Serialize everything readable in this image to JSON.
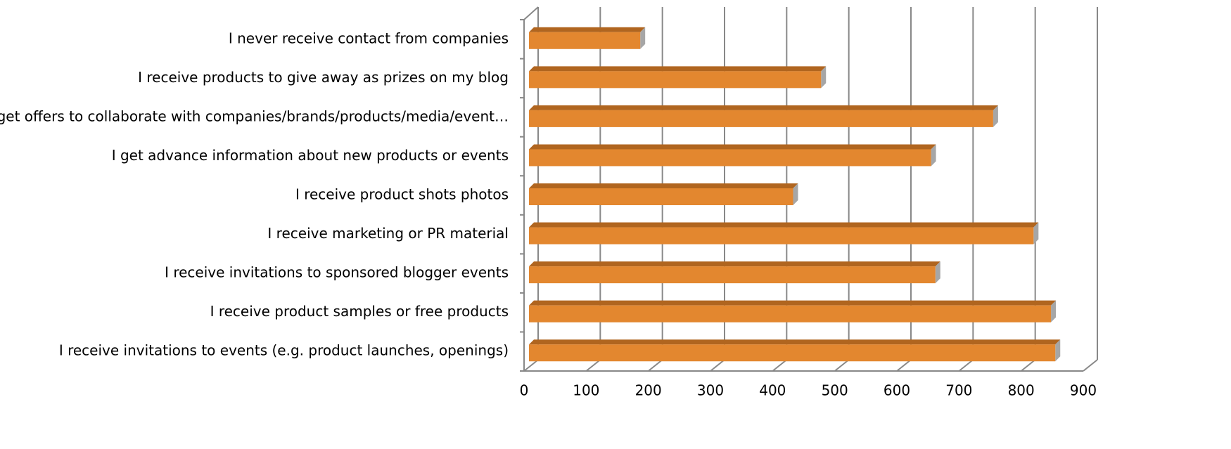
{
  "chart_data": {
    "type": "bar3d",
    "categories": [
      "I never receive contact from companies",
      "I receive products to give away as prizes on my blog",
      "I get offers to collaborate with companies/brands/products/media/event…",
      "I get advance information about new products or events",
      "I receive product shots photos",
      "I receive marketing or PR material",
      "I receive invitations to sponsored blogger events",
      "I receive product samples or free products",
      "I receive invitations to events (e.g. product launches, openings)"
    ],
    "values": [
      187,
      478,
      755,
      655,
      433,
      820,
      662,
      848,
      855
    ],
    "color": "#e3872f",
    "xlim": [
      0,
      900
    ],
    "xticks": [
      0,
      100,
      200,
      300,
      400,
      500,
      600,
      700,
      800,
      900
    ],
    "grid": true
  }
}
